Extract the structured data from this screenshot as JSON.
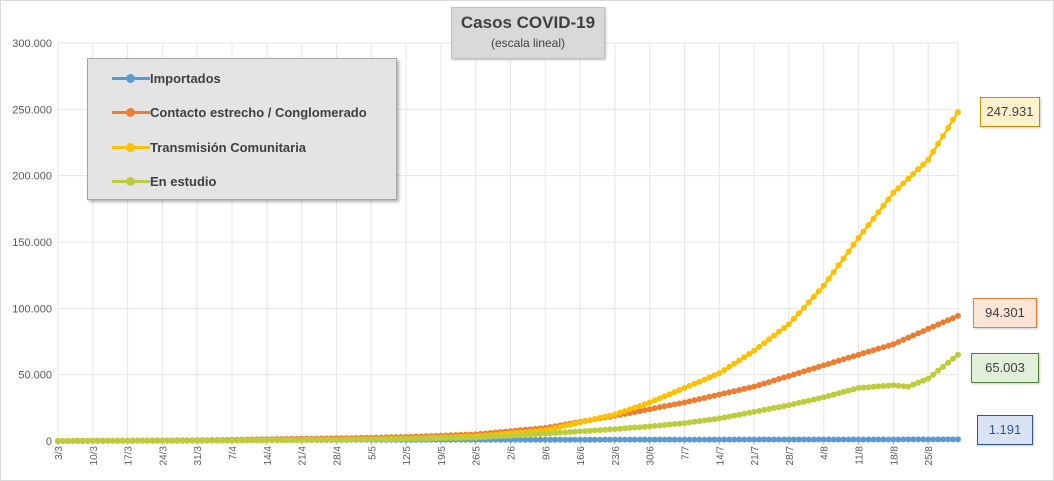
{
  "chart_data": {
    "type": "line",
    "title": "Casos COVID-19",
    "subtitle": "(escala lineal)",
    "ylim": [
      0,
      300000
    ],
    "yticks": [
      0,
      50000,
      100000,
      150000,
      200000,
      250000,
      300000
    ],
    "ytick_labels": [
      "0",
      "50.000",
      "100.000",
      "150.000",
      "200.000",
      "250.000",
      "300.000"
    ],
    "x_start": "3/3",
    "x_end": "31/8",
    "xtick_labels": [
      "3/3",
      "10/3",
      "17/3",
      "24/3",
      "31/3",
      "7/4",
      "14/4",
      "21/4",
      "28/4",
      "5/5",
      "12/5",
      "19/5",
      "26/5",
      "2/6",
      "9/6",
      "16/6",
      "23/6",
      "30/6",
      "7/7",
      "14/7",
      "21/7",
      "28/7",
      "4/8",
      "11/8",
      "18/8",
      "25/8"
    ],
    "grid": "vertical",
    "legend_position": "top-left",
    "series": [
      {
        "name": "Importados",
        "color": "#5b9bd5",
        "end_label": "1.191",
        "label_bg": "#dae3f3",
        "label_border": "#2f5597",
        "label_color": "#2f5597",
        "points": [
          [
            "3/3",
            0
          ],
          [
            "31/3",
            500
          ],
          [
            "30/4",
            800
          ],
          [
            "31/5",
            950
          ],
          [
            "30/6",
            1050
          ],
          [
            "31/7",
            1130
          ],
          [
            "31/8",
            1191
          ]
        ]
      },
      {
        "name": "Contacto estrecho / Conglomerado",
        "color": "#ed7d31",
        "end_label": "94.301",
        "label_bg": "#fbe5d6",
        "label_border": "#ed7d31",
        "label_color": "#404040",
        "points": [
          [
            "3/3",
            0
          ],
          [
            "31/3",
            500
          ],
          [
            "14/4",
            1300
          ],
          [
            "28/4",
            2000
          ],
          [
            "12/5",
            3000
          ],
          [
            "26/5",
            5000
          ],
          [
            "9/6",
            9800
          ],
          [
            "23/6",
            19000
          ],
          [
            "7/7",
            29000
          ],
          [
            "21/7",
            41000
          ],
          [
            "4/8",
            57000
          ],
          [
            "18/8",
            73000
          ],
          [
            "31/8",
            94301
          ]
        ]
      },
      {
        "name": "Transmisión Comunitaria",
        "color": "#ffc000",
        "end_label": "247.931",
        "label_bg": "#fff2cc",
        "label_border": "#bf9000",
        "label_color": "#404040",
        "points": [
          [
            "3/3",
            0
          ],
          [
            "31/3",
            300
          ],
          [
            "14/4",
            600
          ],
          [
            "28/4",
            1000
          ],
          [
            "12/5",
            1800
          ],
          [
            "26/5",
            3500
          ],
          [
            "9/6",
            8000
          ],
          [
            "16/6",
            14000
          ],
          [
            "23/6",
            20000
          ],
          [
            "30/6",
            29000
          ],
          [
            "7/7",
            40000
          ],
          [
            "14/7",
            51000
          ],
          [
            "21/7",
            68000
          ],
          [
            "28/7",
            88000
          ],
          [
            "4/8",
            117000
          ],
          [
            "11/8",
            153000
          ],
          [
            "18/8",
            187000
          ],
          [
            "25/8",
            212000
          ],
          [
            "31/8",
            247931
          ]
        ]
      },
      {
        "name": "En estudio",
        "color": "#bdcc3c",
        "end_label": "65.003",
        "label_bg": "#e2f0d9",
        "label_border": "#548235",
        "label_color": "#404040",
        "points": [
          [
            "3/3",
            0
          ],
          [
            "31/3",
            200
          ],
          [
            "14/4",
            500
          ],
          [
            "28/4",
            900
          ],
          [
            "12/5",
            1500
          ],
          [
            "26/5",
            2500
          ],
          [
            "9/6",
            5500
          ],
          [
            "23/6",
            9000
          ],
          [
            "30/6",
            11000
          ],
          [
            "7/7",
            13500
          ],
          [
            "14/7",
            17000
          ],
          [
            "21/7",
            22000
          ],
          [
            "28/7",
            27000
          ],
          [
            "4/8",
            33000
          ],
          [
            "11/8",
            40000
          ],
          [
            "18/8",
            42000
          ],
          [
            "21/8",
            41000
          ],
          [
            "25/8",
            47000
          ],
          [
            "31/8",
            65003
          ]
        ]
      }
    ]
  }
}
